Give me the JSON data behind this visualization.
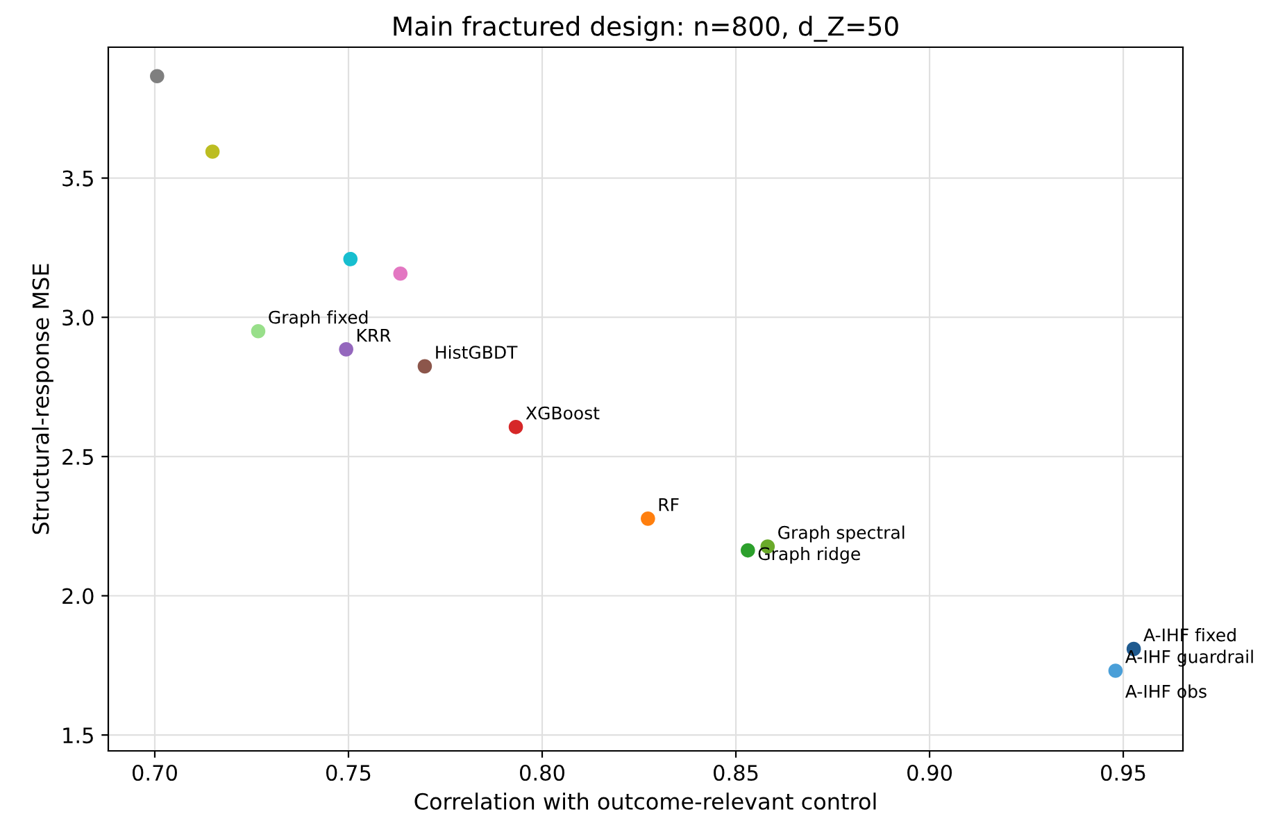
{
  "chart_data": {
    "type": "scatter",
    "title": "Main fractured design: n=800, d_Z=50",
    "xlabel": "Correlation with outcome-relevant control",
    "ylabel": "Structural-response MSE",
    "xlim": [
      0.688,
      0.9654
    ],
    "ylim": [
      1.443,
      3.97
    ],
    "xticks": [
      {
        "value": 0.7,
        "label": "0.70"
      },
      {
        "value": 0.75,
        "label": "0.75"
      },
      {
        "value": 0.8,
        "label": "0.80"
      },
      {
        "value": 0.85,
        "label": "0.85"
      },
      {
        "value": 0.9,
        "label": "0.90"
      },
      {
        "value": 0.95,
        "label": "0.95"
      }
    ],
    "yticks": [
      1.5,
      {
        "value": 2,
        "label": "2.0"
      },
      2.5,
      {
        "value": 3,
        "label": "3.0"
      },
      3.5
    ],
    "grid": true,
    "marker": "circle",
    "annotations": [
      {
        "text": "A-IHF obs",
        "x": 0.948,
        "y": 1.731
      }
    ],
    "series": [
      {
        "color": "#7f7f7f",
        "x": [
          0.7006
        ],
        "values": [
          3.866
        ]
      },
      {
        "color": "#bcbd22",
        "x": [
          0.7149
        ],
        "values": [
          3.595
        ]
      },
      {
        "color": "#17becf",
        "x": [
          0.7505
        ],
        "values": [
          3.209
        ]
      },
      {
        "color": "#e377c2",
        "x": [
          0.7634
        ],
        "values": [
          3.157
        ]
      },
      {
        "name": "Graph fixed",
        "color": "#98df8a",
        "x": [
          0.7267
        ],
        "values": [
          2.95
        ]
      },
      {
        "name": "KRR",
        "color": "#9467bd",
        "x": [
          0.7494
        ],
        "values": [
          2.885
        ]
      },
      {
        "name": "HistGBDT",
        "color": "#8c564b",
        "x": [
          0.7697
        ],
        "values": [
          2.824
        ]
      },
      {
        "name": "XGBoost",
        "color": "#d62728",
        "x": [
          0.7932
        ],
        "values": [
          2.606
        ]
      },
      {
        "name": "RF",
        "color": "#ff7f0e",
        "x": [
          0.8273
        ],
        "values": [
          2.277
        ]
      },
      {
        "name": "Graph spectral",
        "color": "#6aaa2a",
        "x": [
          0.8582
        ],
        "values": [
          2.177
        ]
      },
      {
        "name": "Graph ridge",
        "color": "#2ca02c",
        "x": [
          0.8531
        ],
        "values": [
          2.163
        ]
      },
      {
        "name": "A-IHF fixed",
        "color": "#1f5a8f",
        "x": [
          0.9527
        ],
        "values": [
          1.809
        ]
      },
      {
        "name": "A-IHF guardrail",
        "color": "#4a9fd8",
        "x": [
          0.948
        ],
        "values": [
          1.731
        ]
      }
    ]
  }
}
